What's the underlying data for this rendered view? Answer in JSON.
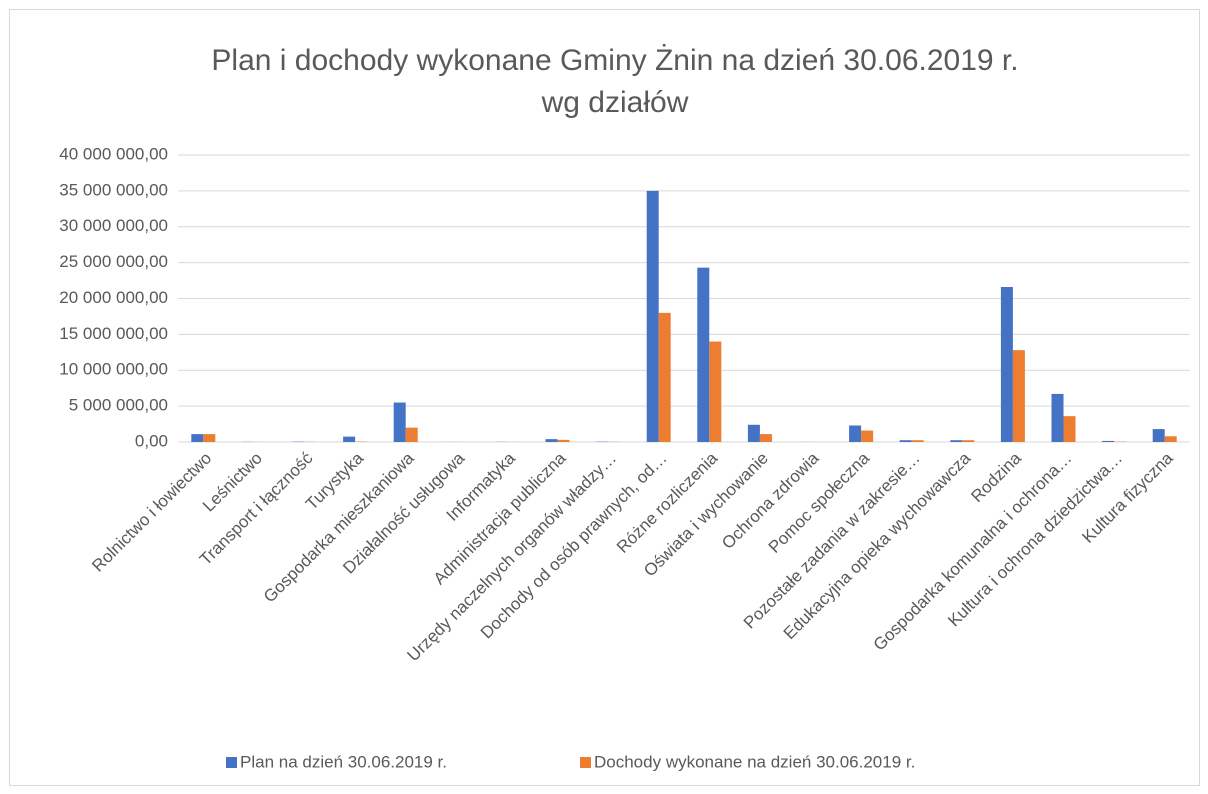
{
  "chart_data": {
    "type": "bar",
    "title": [
      "Plan i dochody wykonane Gminy Żnin na dzień 30.06.2019 r.",
      "wg działów"
    ],
    "categories": [
      "Rolnictwo i łowiectwo",
      "Leśnictwo",
      "Transport i łączność",
      "Turystyka",
      "Gospodarka mieszkaniowa",
      "Działalność usługowa",
      "Informatyka",
      "Administracja publiczna",
      "Urzędy naczelnych organów władzy…",
      "Dochody od osób prawnych, od…",
      "Różne rozliczenia",
      "Oświata i wychowanie",
      "Ochrona zdrowia",
      "Pomoc społeczna",
      "Pozostałe zadania w zakresie…",
      "Edukacyjna opieka wychowawcza",
      "Rodzina",
      "Gospodarka komunalna i ochrona…",
      "Kultura i ochrona dziedzictwa…",
      "Kultura fizyczna"
    ],
    "series": [
      {
        "name": "Plan na dzień 30.06.2019 r.",
        "color": "#4472c4",
        "values": [
          1100000,
          20000,
          50000,
          750000,
          5500000,
          10000,
          20000,
          400000,
          50000,
          35000000,
          24300000,
          2400000,
          10000,
          2300000,
          250000,
          250000,
          21600000,
          6700000,
          150000,
          1800000
        ]
      },
      {
        "name": "Dochody wykonane na dzień 30.06.2019 r.",
        "color": "#ed7d31",
        "values": [
          1100000,
          10000,
          20000,
          50000,
          2000000,
          5000,
          10000,
          300000,
          30000,
          18000000,
          14000000,
          1100000,
          5000,
          1600000,
          250000,
          250000,
          12800000,
          3600000,
          50000,
          800000
        ]
      }
    ],
    "ylim": [
      0,
      40000000
    ],
    "yticks": [
      {
        "value": 0,
        "label": "0,00"
      },
      {
        "value": 5000000,
        "label": "5 000 000,00"
      },
      {
        "value": 10000000,
        "label": "10 000 000,00"
      },
      {
        "value": 15000000,
        "label": "15 000 000,00"
      },
      {
        "value": 20000000,
        "label": "20 000 000,00"
      },
      {
        "value": 25000000,
        "label": "25 000 000,00"
      },
      {
        "value": 30000000,
        "label": "30 000 000,00"
      },
      {
        "value": 35000000,
        "label": "35 000 000,00"
      },
      {
        "value": 40000000,
        "label": "40 000 000,00"
      }
    ],
    "grid": true,
    "legend": "bottom"
  }
}
